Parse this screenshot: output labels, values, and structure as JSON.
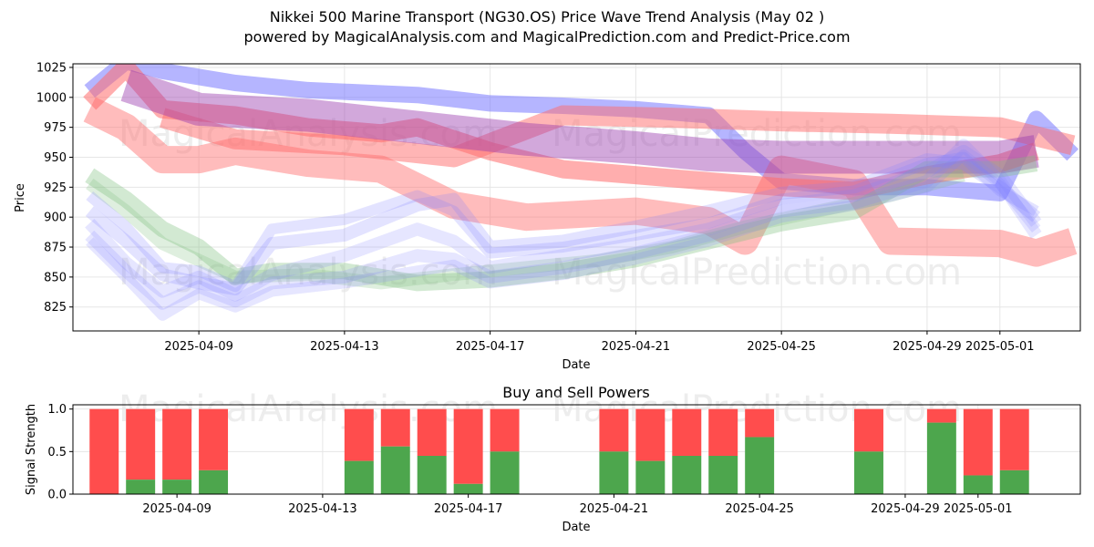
{
  "title_line1": "Nikkei 500 Marine Transport (NG30.OS) Price Wave Trend Analysis (May 02 )",
  "title_line2": "powered by MagicalAnalysis.com and MagicalPrediction.com and Predict-Price.com",
  "watermarks": [
    "MagicalAnalysis.com",
    "MagicalPrediction.com"
  ],
  "colors": {
    "buy": "#4da64d",
    "sell": "#ff4d4d",
    "blue_band": "#6b6bff",
    "red_band": "#ff6b6b",
    "green_band": "#7fbf7f",
    "purple_band": "#9b3fb0"
  },
  "chart_data": [
    {
      "type": "area",
      "xlabel": "Date",
      "ylabel": "Price",
      "ylim": [
        805,
        1028
      ],
      "xlim": [
        "2025-04-05T13:00",
        "2025-05-03T05:00"
      ],
      "yticks": [
        825,
        850,
        875,
        900,
        925,
        950,
        975,
        1000,
        1025
      ],
      "xticks": [
        "2025-04-09",
        "2025-04-13",
        "2025-04-17",
        "2025-04-21",
        "2025-04-25",
        "2025-04-29",
        "2025-05-01"
      ],
      "grid": true,
      "series": [
        {
          "color": "#6b6bff",
          "opacity": 0.5,
          "points": [
            [
              "2025-04-06",
              1005
            ],
            [
              "2025-04-07",
              1030
            ],
            [
              "2025-04-08",
              1022
            ],
            [
              "2025-04-10",
              1012
            ],
            [
              "2025-04-12",
              1006
            ],
            [
              "2025-04-15",
              1002
            ],
            [
              "2025-04-17",
              995
            ],
            [
              "2025-04-19",
              993
            ],
            [
              "2025-04-21",
              990
            ],
            [
              "2025-04-23",
              985
            ],
            [
              "2025-04-24",
              955
            ],
            [
              "2025-04-25",
              930
            ],
            [
              "2025-04-27",
              925
            ],
            [
              "2025-04-29",
              925
            ],
            [
              "2025-05-01",
              920
            ],
            [
              "2025-05-02",
              982
            ],
            [
              "2025-05-03",
              952
            ]
          ],
          "width": 18
        },
        {
          "color": "#ff6b6b",
          "opacity": 0.55,
          "points": [
            [
              "2025-04-06",
              995
            ],
            [
              "2025-04-07",
              1025
            ],
            [
              "2025-04-08",
              990
            ],
            [
              "2025-04-10",
              985
            ],
            [
              "2025-04-12",
              975
            ],
            [
              "2025-04-14",
              970
            ],
            [
              "2025-04-15",
              975
            ],
            [
              "2025-04-17",
              955
            ],
            [
              "2025-04-19",
              940
            ],
            [
              "2025-04-21",
              935
            ],
            [
              "2025-04-23",
              930
            ],
            [
              "2025-04-25",
              925
            ],
            [
              "2025-04-27",
              922
            ],
            [
              "2025-04-29",
              935
            ],
            [
              "2025-05-01",
              945
            ],
            [
              "2025-05-02",
              955
            ]
          ],
          "width": 20
        },
        {
          "color": "#ff6b6b",
          "opacity": 0.45,
          "points": [
            [
              "2025-04-06",
              990
            ],
            [
              "2025-04-07",
              975
            ],
            [
              "2025-04-08",
              948
            ],
            [
              "2025-04-09",
              948
            ],
            [
              "2025-04-10",
              955
            ],
            [
              "2025-04-12",
              945
            ],
            [
              "2025-04-14",
              940
            ],
            [
              "2025-04-16",
              910
            ],
            [
              "2025-04-18",
              900
            ],
            [
              "2025-04-21",
              905
            ],
            [
              "2025-04-23",
              897
            ],
            [
              "2025-04-24",
              880
            ],
            [
              "2025-04-25",
              940
            ],
            [
              "2025-04-27",
              928
            ],
            [
              "2025-04-28",
              880
            ],
            [
              "2025-05-01",
              878
            ],
            [
              "2025-05-02",
              870
            ],
            [
              "2025-05-03",
              880
            ]
          ],
          "width": 30
        },
        {
          "color": "#ff6b6b",
          "opacity": 0.5,
          "points": [
            [
              "2025-04-08",
              983
            ],
            [
              "2025-04-10",
              965
            ],
            [
              "2025-04-13",
              960
            ],
            [
              "2025-04-16",
              950
            ],
            [
              "2025-04-19",
              985
            ],
            [
              "2025-04-22",
              983
            ],
            [
              "2025-04-25",
              980
            ],
            [
              "2025-04-28",
              978
            ],
            [
              "2025-05-01",
              975
            ],
            [
              "2025-05-03",
              960
            ]
          ],
          "width": 22
        },
        {
          "color": "#9b3fb0",
          "opacity": 0.45,
          "points": [
            [
              "2025-04-07",
              1010
            ],
            [
              "2025-04-09",
              990
            ],
            [
              "2025-04-12",
              985
            ],
            [
              "2025-04-15",
              975
            ],
            [
              "2025-04-18",
              965
            ],
            [
              "2025-04-21",
              958
            ],
            [
              "2025-04-23",
              952
            ],
            [
              "2025-04-25",
              950
            ],
            [
              "2025-04-27",
              950
            ],
            [
              "2025-04-29",
              950
            ],
            [
              "2025-05-01",
              950
            ],
            [
              "2025-05-02",
              955
            ]
          ],
          "width": 36
        },
        {
          "color": "#7fbf7f",
          "opacity": 0.35,
          "points": [
            [
              "2025-04-06",
              935
            ],
            [
              "2025-04-07",
              915
            ],
            [
              "2025-04-08",
              890
            ],
            [
              "2025-04-09",
              875
            ],
            [
              "2025-04-10",
              850
            ],
            [
              "2025-04-11",
              855
            ],
            [
              "2025-04-13",
              855
            ],
            [
              "2025-04-15",
              845
            ],
            [
              "2025-04-17",
              848
            ],
            [
              "2025-04-19",
              855
            ],
            [
              "2025-04-21",
              865
            ],
            [
              "2025-04-23",
              880
            ],
            [
              "2025-04-25",
              895
            ],
            [
              "2025-04-27",
              905
            ],
            [
              "2025-04-29",
              940
            ],
            [
              "2025-05-01",
              940
            ],
            [
              "2025-05-02",
              945
            ]
          ],
          "width": 18
        },
        {
          "color": "#7fbf7f",
          "opacity": 0.25,
          "points": [
            [
              "2025-04-06",
              928
            ],
            [
              "2025-04-07",
              905
            ],
            [
              "2025-04-08",
              878
            ],
            [
              "2025-04-10",
              850
            ],
            [
              "2025-04-12",
              852
            ],
            [
              "2025-04-14",
              845
            ],
            [
              "2025-04-16",
              852
            ],
            [
              "2025-04-18",
              858
            ],
            [
              "2025-04-20",
              864
            ],
            [
              "2025-04-22",
              875
            ],
            [
              "2025-04-24",
              892
            ],
            [
              "2025-04-26",
              905
            ],
            [
              "2025-04-28",
              918
            ],
            [
              "2025-04-30",
              935
            ]
          ],
          "width": 14
        },
        {
          "color": "#8080ff",
          "opacity": 0.22,
          "points": [
            [
              "2025-04-06",
              905
            ],
            [
              "2025-04-07",
              880
            ],
            [
              "2025-04-08",
              852
            ],
            [
              "2025-04-09",
              845
            ],
            [
              "2025-04-10",
              840
            ],
            [
              "2025-04-11",
              878
            ],
            [
              "2025-04-13",
              885
            ],
            [
              "2025-04-15",
              910
            ],
            [
              "2025-04-16",
              915
            ],
            [
              "2025-04-17",
              875
            ],
            [
              "2025-04-19",
              880
            ],
            [
              "2025-04-21",
              892
            ],
            [
              "2025-04-23",
              905
            ],
            [
              "2025-04-25",
              920
            ],
            [
              "2025-04-27",
              925
            ],
            [
              "2025-04-29",
              948
            ],
            [
              "2025-04-30",
              945
            ],
            [
              "2025-05-01",
              925
            ],
            [
              "2025-05-02",
              900
            ]
          ],
          "width": 14
        },
        {
          "color": "#8080ff",
          "opacity": 0.2,
          "points": [
            [
              "2025-04-06",
              895
            ],
            [
              "2025-04-07",
              862
            ],
            [
              "2025-04-08",
              838
            ],
            [
              "2025-04-09",
              850
            ],
            [
              "2025-04-10",
              835
            ],
            [
              "2025-04-11",
              852
            ],
            [
              "2025-04-13",
              868
            ],
            [
              "2025-04-15",
              890
            ],
            [
              "2025-04-16",
              880
            ],
            [
              "2025-04-17",
              858
            ],
            [
              "2025-04-19",
              868
            ],
            [
              "2025-04-21",
              878
            ],
            [
              "2025-04-23",
              890
            ],
            [
              "2025-04-25",
              910
            ],
            [
              "2025-04-27",
              918
            ],
            [
              "2025-04-29",
              938
            ],
            [
              "2025-04-30",
              955
            ],
            [
              "2025-05-01",
              935
            ],
            [
              "2025-05-02",
              895
            ]
          ],
          "width": 14
        },
        {
          "color": "#8080ff",
          "opacity": 0.2,
          "points": [
            [
              "2025-04-06",
              885
            ],
            [
              "2025-04-07",
              855
            ],
            [
              "2025-04-08",
              828
            ],
            [
              "2025-04-09",
              842
            ],
            [
              "2025-04-10",
              830
            ],
            [
              "2025-04-11",
              845
            ],
            [
              "2025-04-13",
              850
            ],
            [
              "2025-04-15",
              868
            ],
            [
              "2025-04-16",
              865
            ],
            [
              "2025-04-17",
              850
            ],
            [
              "2025-04-19",
              858
            ],
            [
              "2025-04-21",
              870
            ],
            [
              "2025-04-23",
              885
            ],
            [
              "2025-04-25",
              905
            ],
            [
              "2025-04-27",
              912
            ],
            [
              "2025-04-29",
              930
            ],
            [
              "2025-04-30",
              960
            ],
            [
              "2025-05-01",
              930
            ],
            [
              "2025-05-02",
              885
            ]
          ],
          "width": 14
        },
        {
          "color": "#8080ff",
          "opacity": 0.2,
          "points": [
            [
              "2025-04-06",
              880
            ],
            [
              "2025-04-07",
              850
            ],
            [
              "2025-04-08",
              818
            ],
            [
              "2025-04-09",
              836
            ],
            [
              "2025-04-10",
              825
            ],
            [
              "2025-04-11",
              838
            ],
            [
              "2025-04-13",
              845
            ],
            [
              "2025-04-15",
              855
            ],
            [
              "2025-04-16",
              860
            ],
            [
              "2025-04-17",
              845
            ],
            [
              "2025-04-19",
              852
            ],
            [
              "2025-04-21",
              865
            ],
            [
              "2025-04-23",
              880
            ],
            [
              "2025-04-25",
              900
            ],
            [
              "2025-04-27",
              910
            ],
            [
              "2025-04-29",
              925
            ],
            [
              "2025-04-30",
              952
            ],
            [
              "2025-05-01",
              928
            ],
            [
              "2025-05-02",
              890
            ]
          ],
          "width": 12
        },
        {
          "color": "#8080ff",
          "opacity": 0.22,
          "points": [
            [
              "2025-04-06",
              918
            ],
            [
              "2025-04-07",
              892
            ],
            [
              "2025-04-08",
              858
            ],
            [
              "2025-04-09",
              855
            ],
            [
              "2025-04-10",
              842
            ],
            [
              "2025-04-11",
              890
            ],
            [
              "2025-04-13",
              898
            ],
            [
              "2025-04-15",
              918
            ],
            [
              "2025-04-16",
              905
            ],
            [
              "2025-04-17",
              870
            ],
            [
              "2025-04-19",
              875
            ],
            [
              "2025-04-21",
              885
            ],
            [
              "2025-04-23",
              895
            ],
            [
              "2025-04-25",
              915
            ],
            [
              "2025-04-27",
              922
            ],
            [
              "2025-04-29",
              945
            ],
            [
              "2025-04-30",
              950
            ],
            [
              "2025-05-01",
              922
            ],
            [
              "2025-05-02",
              905
            ]
          ],
          "width": 12
        }
      ]
    },
    {
      "type": "bar",
      "title": "Buy and Sell Powers",
      "xlabel": "Date",
      "ylabel": "Signal Strength",
      "ylim": [
        0,
        1.05
      ],
      "yticks": [
        0.0,
        0.5,
        1.0
      ],
      "xlim": [
        "2025-04-05T13:00",
        "2025-05-03T05:00"
      ],
      "xticks": [
        "2025-04-09",
        "2025-04-13",
        "2025-04-17",
        "2025-04-21",
        "2025-04-25",
        "2025-04-29",
        "2025-05-01"
      ],
      "grid": true,
      "bars": [
        {
          "date": "2025-04-07",
          "buy": 0.0
        },
        {
          "date": "2025-04-08",
          "buy": 0.17
        },
        {
          "date": "2025-04-09",
          "buy": 0.17
        },
        {
          "date": "2025-04-10",
          "buy": 0.28
        },
        {
          "date": "2025-04-14",
          "buy": 0.39
        },
        {
          "date": "2025-04-15",
          "buy": 0.56
        },
        {
          "date": "2025-04-16",
          "buy": 0.45
        },
        {
          "date": "2025-04-17",
          "buy": 0.12
        },
        {
          "date": "2025-04-18",
          "buy": 0.5
        },
        {
          "date": "2025-04-21",
          "buy": 0.5
        },
        {
          "date": "2025-04-22",
          "buy": 0.39
        },
        {
          "date": "2025-04-23",
          "buy": 0.45
        },
        {
          "date": "2025-04-24",
          "buy": 0.45
        },
        {
          "date": "2025-04-25",
          "buy": 0.67
        },
        {
          "date": "2025-04-28",
          "buy": 0.5
        },
        {
          "date": "2025-04-30",
          "buy": 0.84
        },
        {
          "date": "2025-05-01",
          "buy": 0.22
        },
        {
          "date": "2025-05-02",
          "buy": 0.28
        }
      ]
    }
  ]
}
